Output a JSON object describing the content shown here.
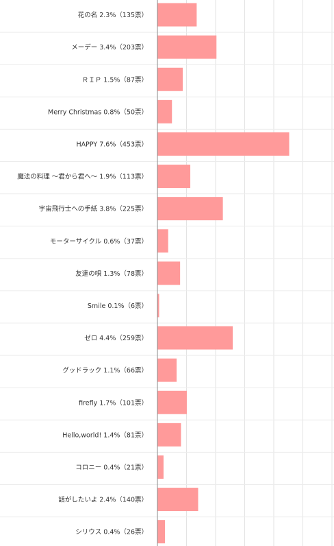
{
  "chart_data": {
    "type": "bar",
    "orientation": "horizontal",
    "categories": [
      "花の名 2.3%（135票）",
      "メーデー 3.4%（203票）",
      "ＲＩＰ 1.5%（87票）",
      "Merry Christmas 0.8%（50票）",
      "HAPPY 7.6%（453票）",
      "魔法の料理 ～君から君へ～ 1.9%（113票）",
      "宇宙飛行士への手紙 3.8%（225票）",
      "モーターサイクル 0.6%（37票）",
      "友達の唄 1.3%（78票）",
      "Smile 0.1%（6票）",
      "ゼロ 4.4%（259票）",
      "グッドラック 1.1%（66票）",
      "firefly 1.7%（101票）",
      "Hello,world! 1.4%（81票）",
      "コロニー 0.4%（21票）",
      "話がしたいよ 2.4%（140票）",
      "シリウス 0.4%（26票）"
    ],
    "values": [
      135,
      203,
      87,
      50,
      453,
      113,
      225,
      37,
      78,
      6,
      259,
      66,
      101,
      81,
      21,
      140,
      26
    ],
    "xlim": [
      0,
      600
    ],
    "grid": true,
    "bar_color": "#ff9a9a",
    "grid_color": "#e3e3e3",
    "axis_color": "#888888"
  }
}
